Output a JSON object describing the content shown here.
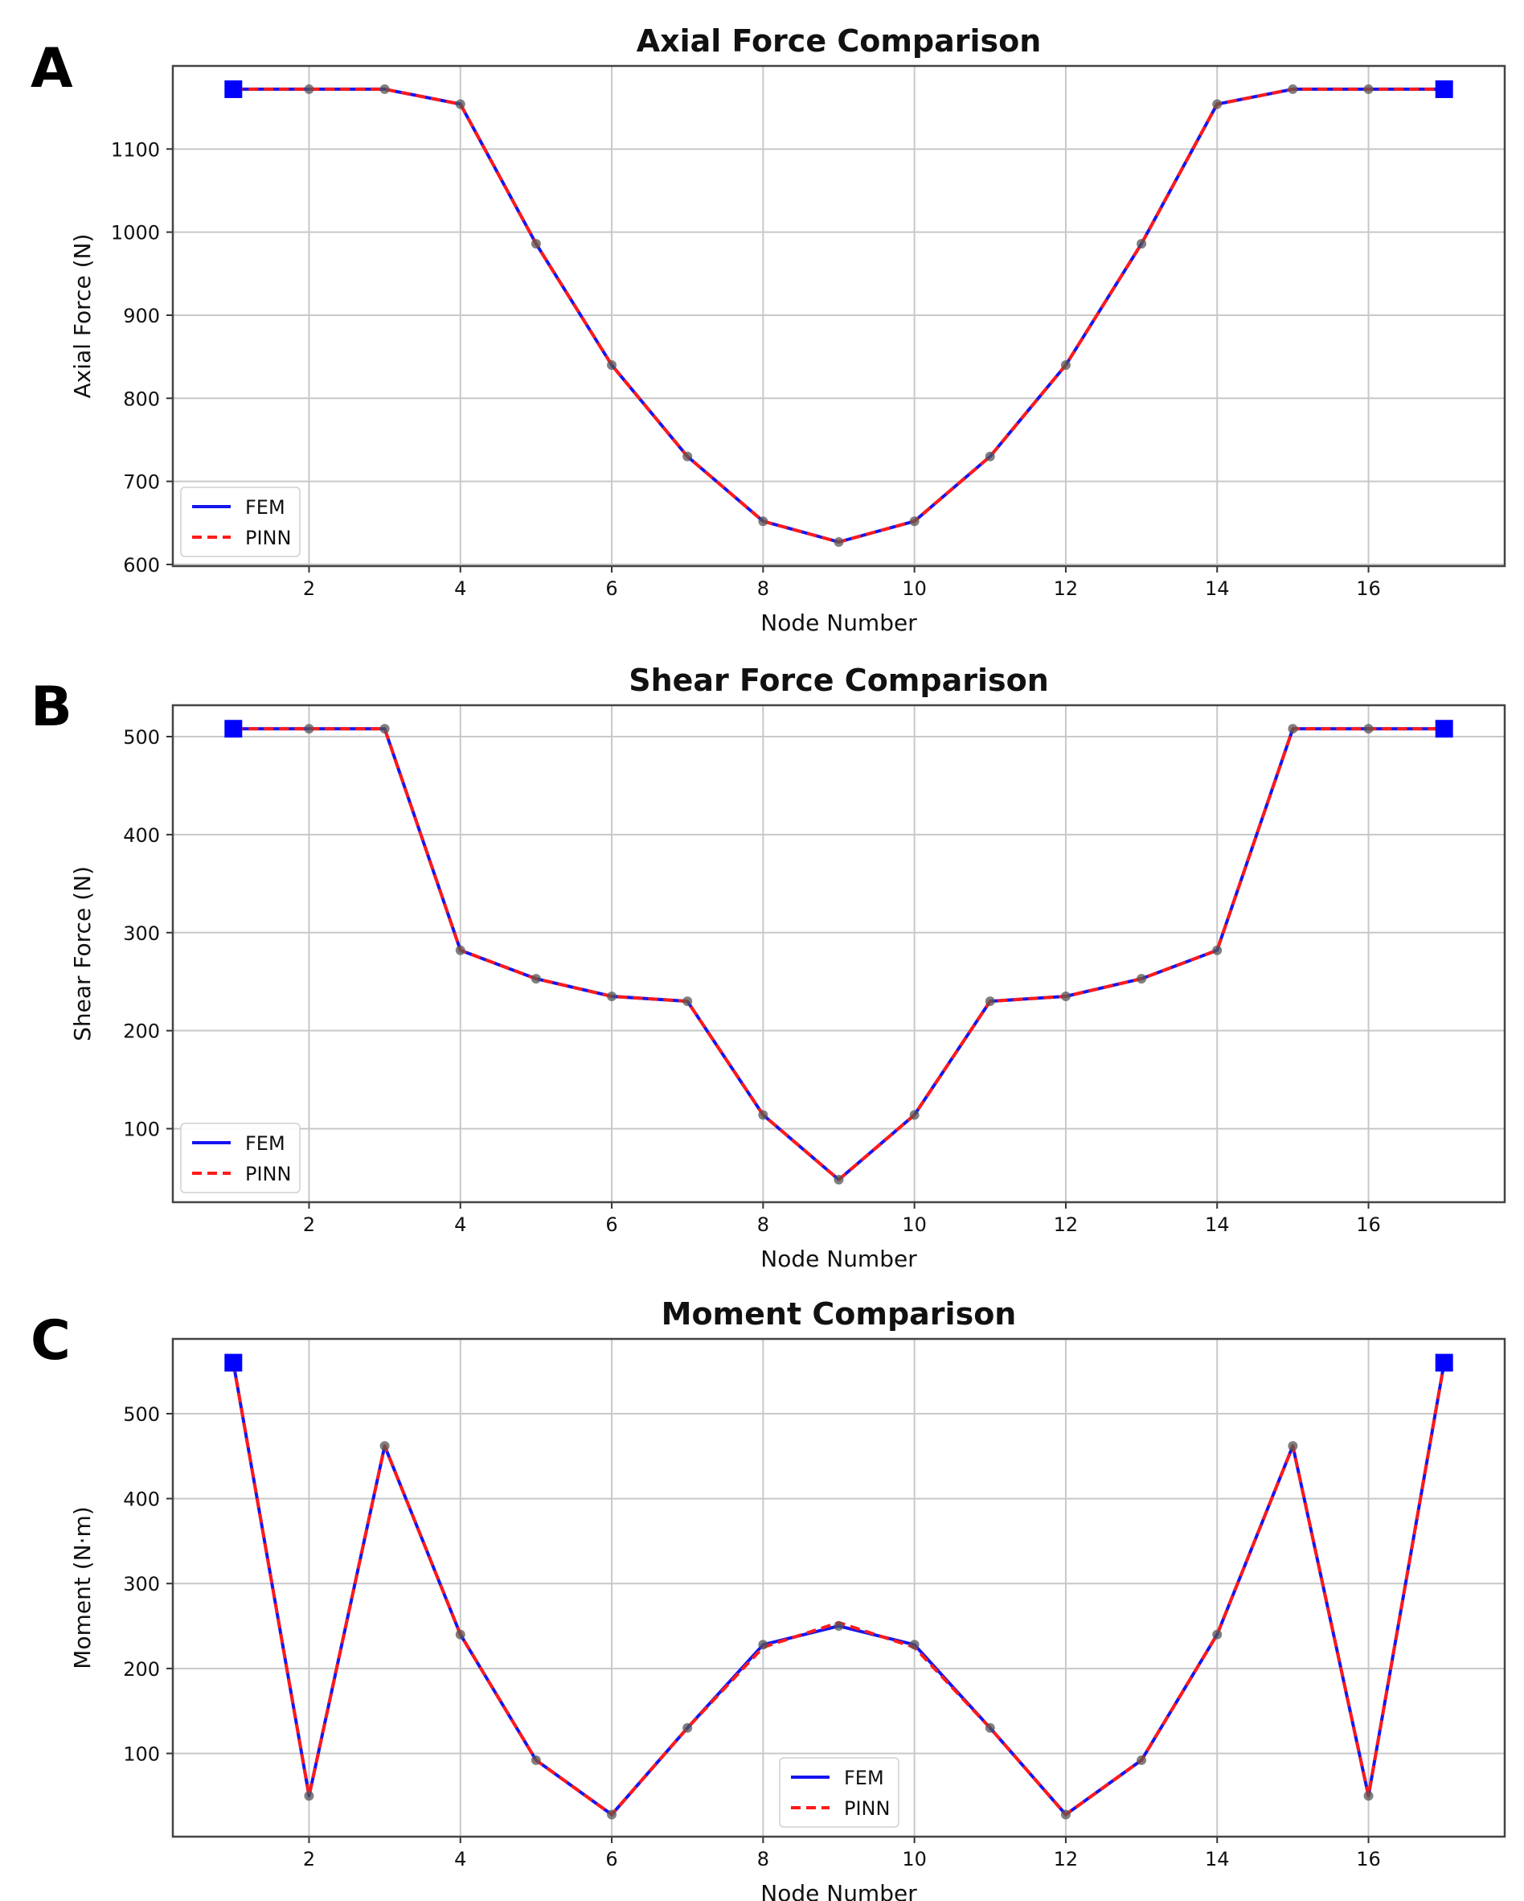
{
  "panels": [
    {
      "letter": "A"
    },
    {
      "letter": "B"
    },
    {
      "letter": "C"
    }
  ],
  "chart_data": [
    {
      "type": "line",
      "title": "Axial Force Comparison",
      "xlabel": "Node Number",
      "ylabel": "Axial Force (N)",
      "xlim": [
        0.2,
        17.8
      ],
      "ylim": [
        598,
        1200
      ],
      "xticks": [
        2,
        4,
        6,
        8,
        10,
        12,
        14,
        16
      ],
      "yticks": [
        600,
        700,
        800,
        900,
        1000,
        1100
      ],
      "grid": true,
      "legend_position": "lower-left",
      "x": [
        1,
        2,
        3,
        4,
        5,
        6,
        7,
        8,
        9,
        10,
        11,
        12,
        13,
        14,
        15,
        16,
        17
      ],
      "series": [
        {
          "name": "FEM",
          "color": "#1515f0",
          "style": "solid",
          "values": [
            1172,
            1172,
            1172,
            1154,
            986,
            840,
            730,
            652,
            627,
            652,
            730,
            840,
            986,
            1154,
            1172,
            1172,
            1172
          ]
        },
        {
          "name": "PINN",
          "color": "#ff1a1a",
          "style": "dashed",
          "values": [
            1172,
            1172,
            1172,
            1154,
            986,
            840,
            730,
            652,
            627,
            652,
            730,
            840,
            986,
            1154,
            1172,
            1172,
            1172
          ]
        }
      ],
      "support_nodes": [
        1,
        17
      ]
    },
    {
      "type": "line",
      "title": "Shear Force Comparison",
      "xlabel": "Node Number",
      "ylabel": "Shear Force (N)",
      "xlim": [
        0.2,
        17.8
      ],
      "ylim": [
        25,
        532
      ],
      "xticks": [
        2,
        4,
        6,
        8,
        10,
        12,
        14,
        16
      ],
      "yticks": [
        100,
        200,
        300,
        400,
        500
      ],
      "grid": true,
      "legend_position": "lower-left",
      "x": [
        1,
        2,
        3,
        4,
        5,
        6,
        7,
        8,
        9,
        10,
        11,
        12,
        13,
        14,
        15,
        16,
        17
      ],
      "series": [
        {
          "name": "FEM",
          "color": "#1515f0",
          "style": "solid",
          "values": [
            508,
            508,
            508,
            282,
            253,
            235,
            230,
            114,
            48,
            114,
            230,
            235,
            253,
            282,
            508,
            508,
            508
          ]
        },
        {
          "name": "PINN",
          "color": "#ff1a1a",
          "style": "dashed",
          "values": [
            508,
            508,
            508,
            282,
            253,
            235,
            230,
            114,
            48,
            114,
            230,
            235,
            253,
            282,
            508,
            508,
            508
          ]
        }
      ],
      "support_nodes": [
        1,
        17
      ]
    },
    {
      "type": "line",
      "title": "Moment Comparison",
      "xlabel": "Node Number",
      "ylabel": "Moment (N·m)",
      "xlim": [
        0.2,
        17.8
      ],
      "ylim": [
        2,
        588
      ],
      "xticks": [
        2,
        4,
        6,
        8,
        10,
        12,
        14,
        16
      ],
      "yticks": [
        100,
        200,
        300,
        400,
        500
      ],
      "grid": true,
      "legend_position": "lower-center",
      "x": [
        1,
        2,
        3,
        4,
        5,
        6,
        7,
        8,
        9,
        10,
        11,
        12,
        13,
        14,
        15,
        16,
        17
      ],
      "series": [
        {
          "name": "FEM",
          "color": "#1515f0",
          "style": "solid",
          "values": [
            560,
            50,
            462,
            240,
            92,
            28,
            130,
            228,
            250,
            228,
            130,
            28,
            92,
            240,
            462,
            50,
            560
          ]
        },
        {
          "name": "PINN",
          "color": "#ff1a1a",
          "style": "dashed",
          "values": [
            560,
            50,
            462,
            240,
            92,
            28,
            130,
            225,
            254,
            225,
            130,
            28,
            92,
            240,
            462,
            50,
            560
          ]
        }
      ],
      "support_nodes": [
        1,
        17
      ]
    }
  ]
}
